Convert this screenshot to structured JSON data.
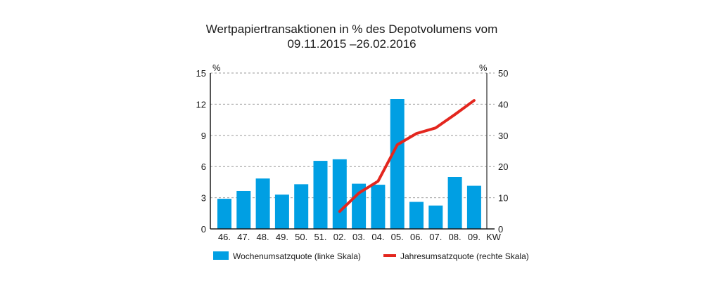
{
  "chart_data": {
    "type": "bar",
    "title": "Wertpapiertransaktionen in % des Depotvolumens vom",
    "subtitle": "09.11.2015 –26.02.2016",
    "xlabel": "KW",
    "ylabel_left": "%",
    "ylabel_right": "%",
    "categories": [
      "46.",
      "47.",
      "48.",
      "49.",
      "50.",
      "51.",
      "02.",
      "03.",
      "04.",
      "05.",
      "06.",
      "07.",
      "08.",
      "09."
    ],
    "y_left": {
      "lim": [
        0,
        15
      ],
      "ticks": [
        0,
        3,
        6,
        9,
        12,
        15
      ]
    },
    "y_right": {
      "lim": [
        0,
        50
      ],
      "ticks": [
        0,
        10,
        20,
        30,
        40,
        50
      ]
    },
    "grid": true,
    "legend_position": "bottom",
    "series": [
      {
        "name": "Wochenumsatzquote (linke Skala)",
        "type": "bar",
        "axis": "left",
        "color": "#009FE3",
        "values": [
          2.9,
          3.65,
          4.85,
          3.3,
          4.3,
          6.55,
          6.7,
          4.35,
          4.25,
          12.5,
          2.6,
          2.25,
          5.0,
          4.15
        ]
      },
      {
        "name": "Jahresumsatzquote (rechte Skala)",
        "type": "line",
        "axis": "right",
        "color": "#E3261E",
        "values": [
          null,
          null,
          null,
          null,
          null,
          null,
          5.6,
          11.5,
          15.3,
          27.0,
          30.6,
          32.4,
          36.7,
          41.2
        ]
      }
    ]
  }
}
